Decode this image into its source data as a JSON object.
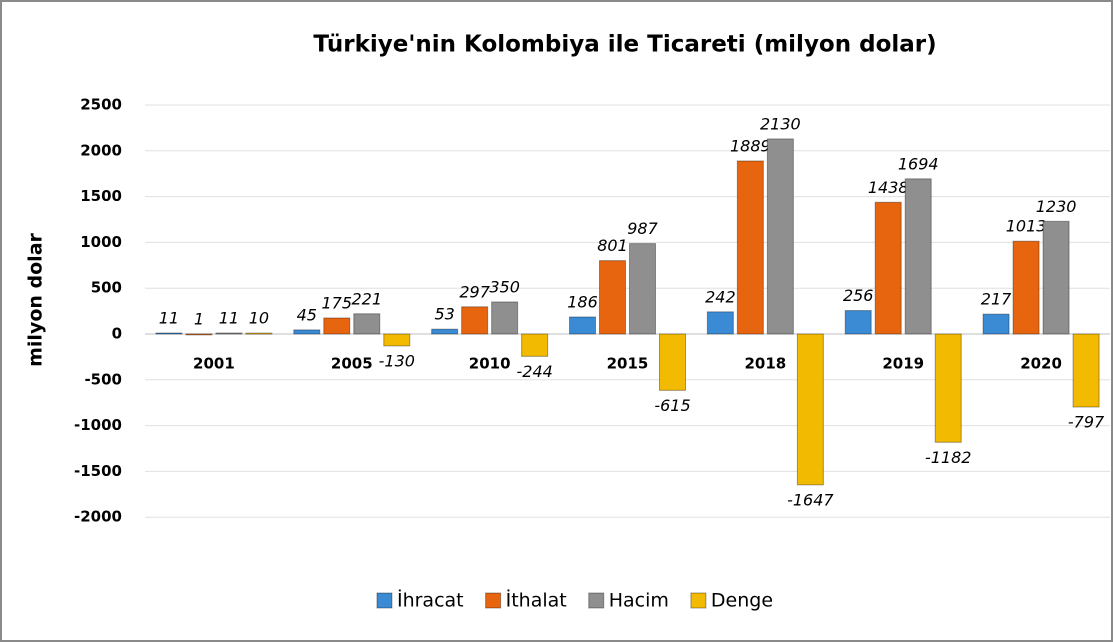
{
  "chart_data": {
    "type": "bar",
    "title": "Türkiye'nin Kolombiya ile Ticareti (milyon dolar)",
    "y_label": "milyon dolar",
    "categories": [
      "2001",
      "2005",
      "2010",
      "2015",
      "2018",
      "2019",
      "2020"
    ],
    "series": [
      {
        "name": "İhracat",
        "color": "#3a8ad4",
        "values": [
          11,
          45,
          53,
          186,
          242,
          256,
          217
        ]
      },
      {
        "name": "İthalat",
        "color": "#e8650f",
        "values": [
          1,
          175,
          297,
          801,
          1889,
          1438,
          1013
        ]
      },
      {
        "name": "Hacim",
        "color": "#8f8f8f",
        "values": [
          11,
          221,
          350,
          987,
          2130,
          1694,
          1230
        ]
      },
      {
        "name": "Denge",
        "color": "#f2ba00",
        "values": [
          10,
          -130,
          -244,
          -615,
          -1647,
          -1182,
          -797
        ]
      }
    ],
    "ylim": [
      -2000,
      2500
    ],
    "yticks": [
      -2000,
      -1500,
      -1000,
      -500,
      0,
      500,
      1000,
      1500,
      2000,
      2500
    ],
    "grid": true,
    "legend": "bottom"
  }
}
